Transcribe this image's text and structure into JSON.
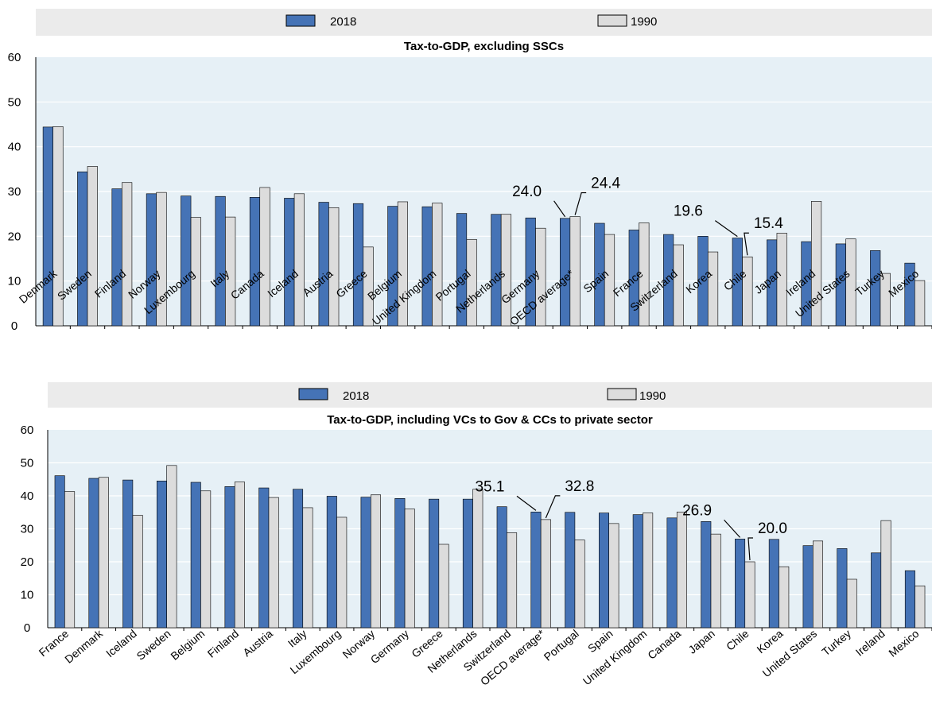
{
  "colors": {
    "bar_2018": "#4573b6",
    "bar_2018_stroke": "#000000",
    "bar_1990": "#dcdcdc",
    "bar_1990_stroke": "#000000",
    "legend_band": "#ebebeb",
    "plot_bg": "#e6f0f6",
    "gridline": "#ffffff",
    "axis": "#000000"
  },
  "chart_data": [
    {
      "type": "bar",
      "title": "Tax-to-GDP, excluding SSCs",
      "xlabel": "",
      "ylabel": "",
      "ylim": [
        0,
        60
      ],
      "yticks": [
        0,
        10,
        20,
        30,
        40,
        50,
        60
      ],
      "grid": true,
      "legend_position": "top",
      "categories": [
        "Denmark",
        "Sweden",
        "Finland",
        "Norway",
        "Luxembourg",
        "Italy",
        "Canada",
        "Iceland",
        "Austria",
        "Greece",
        "Belgium",
        "United Kingdom",
        "Portugal",
        "Netherlands",
        "Germany",
        "OECD average*",
        "Spain",
        "France",
        "Switzerland",
        "Korea",
        "Chile",
        "Japan",
        "Ireland",
        "United States",
        "Turkey",
        "Mexico"
      ],
      "series": [
        {
          "name": "2018",
          "values": [
            44.4,
            34.4,
            30.6,
            29.5,
            29.0,
            28.9,
            28.7,
            28.5,
            27.6,
            27.3,
            26.7,
            26.6,
            25.1,
            24.9,
            24.1,
            24.0,
            22.9,
            21.4,
            20.4,
            20.0,
            19.6,
            19.2,
            18.8,
            18.3,
            16.8,
            14.0
          ]
        },
        {
          "name": "1990",
          "values": [
            44.5,
            35.6,
            32.0,
            29.8,
            24.2,
            24.3,
            30.9,
            29.5,
            26.4,
            17.6,
            27.7,
            27.4,
            19.3,
            24.9,
            21.8,
            24.4,
            20.4,
            23.0,
            18.1,
            16.5,
            15.4,
            20.7,
            27.8,
            19.4,
            11.7,
            10.1
          ]
        }
      ],
      "annotations": [
        {
          "text": "24.0",
          "category": "OECD average*",
          "series": "2018"
        },
        {
          "text": "24.4",
          "category": "OECD average*",
          "series": "1990"
        },
        {
          "text": "19.6",
          "category": "Chile",
          "series": "2018"
        },
        {
          "text": "15.4",
          "category": "Chile",
          "series": "1990"
        }
      ]
    },
    {
      "type": "bar",
      "title": "Tax-to-GDP, including VCs to Gov & CCs to private sector",
      "xlabel": "",
      "ylabel": "",
      "ylim": [
        0,
        60
      ],
      "yticks": [
        0,
        10,
        20,
        30,
        40,
        50,
        60
      ],
      "grid": true,
      "legend_position": "top",
      "categories": [
        "France",
        "Denmark",
        "Iceland",
        "Sweden",
        "Belgium",
        "Finland",
        "Austria",
        "Italy",
        "Luxembourg",
        "Norway",
        "Germany",
        "Greece",
        "Netherlands",
        "Switzerland",
        "OECD average*",
        "Portugal",
        "Spain",
        "United Kingdom",
        "Canada",
        "Japan",
        "Chile",
        "Korea",
        "United States",
        "Turkey",
        "Ireland",
        "Mexico"
      ],
      "series": [
        {
          "name": "2018",
          "values": [
            46.1,
            45.3,
            44.8,
            44.5,
            44.1,
            42.8,
            42.4,
            42.0,
            39.9,
            39.6,
            39.2,
            39.0,
            39.0,
            36.7,
            35.1,
            35.0,
            34.8,
            34.3,
            33.3,
            32.2,
            26.9,
            26.8,
            24.9,
            24.0,
            22.7,
            17.3
          ]
        },
        {
          "name": "1990",
          "values": [
            41.3,
            45.6,
            34.1,
            49.2,
            41.5,
            44.2,
            39.5,
            36.4,
            33.5,
            40.3,
            36.0,
            25.3,
            42.0,
            28.8,
            32.8,
            26.6,
            31.6,
            34.8,
            35.1,
            28.4,
            20.0,
            18.5,
            26.3,
            14.7,
            32.5,
            12.7
          ]
        }
      ],
      "annotations": [
        {
          "text": "35.1",
          "category": "OECD average*",
          "series": "2018"
        },
        {
          "text": "32.8",
          "category": "OECD average*",
          "series": "1990"
        },
        {
          "text": "26.9",
          "category": "Chile",
          "series": "2018"
        },
        {
          "text": "20.0",
          "category": "Chile",
          "series": "1990"
        }
      ]
    }
  ]
}
